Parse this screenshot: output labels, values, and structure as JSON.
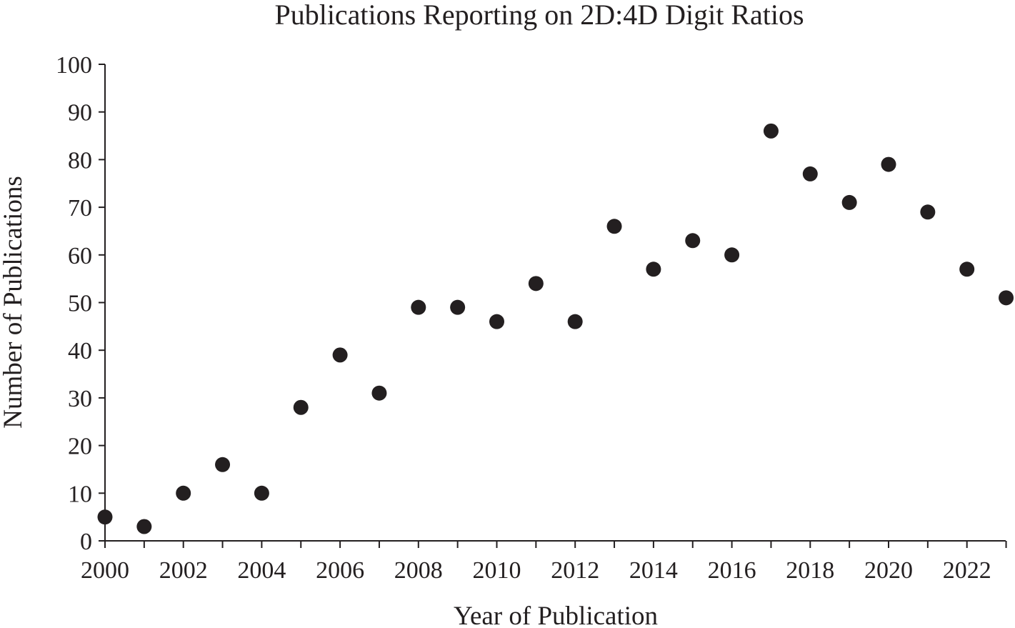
{
  "chart_data": {
    "type": "scatter",
    "title": "Publications Reporting on 2D:4D Digit Ratios",
    "xlabel": "Year of Publication",
    "ylabel": "Number of Publications",
    "xlim": [
      2000,
      2023
    ],
    "ylim": [
      0,
      100
    ],
    "xticks": [
      2000,
      2002,
      2004,
      2006,
      2008,
      2010,
      2012,
      2014,
      2016,
      2018,
      2020,
      2022
    ],
    "yticks": [
      0,
      10,
      20,
      30,
      40,
      50,
      60,
      70,
      80,
      90,
      100
    ],
    "grid": false,
    "legend": "none",
    "marker_color": "#231f20",
    "x": [
      2000,
      2001,
      2002,
      2003,
      2004,
      2005,
      2006,
      2007,
      2008,
      2009,
      2010,
      2011,
      2012,
      2013,
      2014,
      2015,
      2016,
      2017,
      2018,
      2019,
      2020,
      2021,
      2022,
      2023
    ],
    "y": [
      5,
      3,
      10,
      16,
      10,
      28,
      39,
      31,
      49,
      49,
      46,
      54,
      46,
      66,
      57,
      63,
      60,
      86,
      77,
      71,
      79,
      69,
      57,
      51
    ]
  }
}
